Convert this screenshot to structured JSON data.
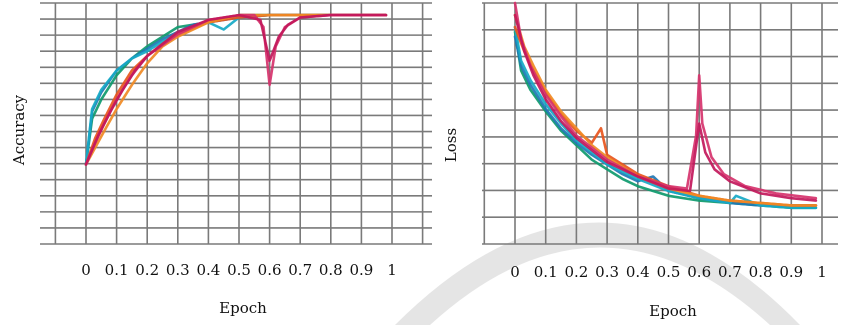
{
  "colors": {
    "grid": "#7a7a7a",
    "background": "#ffffff",
    "watermark": "#bdbdbd",
    "series_palette": [
      "#0e9a6e",
      "#1f77b4",
      "#17a9c6",
      "#e8551d",
      "#f08a24",
      "#d6336c",
      "#c2185b",
      "#2b9bd6"
    ]
  },
  "chart_data": [
    {
      "type": "line",
      "title": "",
      "xlabel": "Epoch",
      "ylabel": "Accuracy",
      "x_ticks": [
        "0",
        "0.1",
        "0.2",
        "0.3",
        "0.4",
        "0.5",
        "0.6",
        "0.7",
        "0.8",
        "0.9",
        "1"
      ],
      "xlim": [
        -0.1,
        1.05
      ],
      "ylim": [
        0,
        1
      ],
      "grid": true,
      "legend": "none",
      "series": [
        {
          "color": "#0e9a6e",
          "x": [
            0,
            0.02,
            0.05,
            0.1,
            0.15,
            0.2,
            0.25,
            0.3,
            0.4,
            0.5,
            0.6,
            0.7,
            0.8,
            0.9,
            0.98
          ],
          "y": [
            0.33,
            0.52,
            0.6,
            0.7,
            0.77,
            0.82,
            0.86,
            0.9,
            0.92,
            0.95,
            0.95,
            0.95,
            0.95,
            0.95,
            0.95
          ]
        },
        {
          "color": "#1f77b4",
          "x": [
            0,
            0.02,
            0.05,
            0.1,
            0.15,
            0.2,
            0.25,
            0.3,
            0.35,
            0.4,
            0.5,
            0.6,
            0.7,
            0.8,
            0.9,
            0.98
          ],
          "y": [
            0.33,
            0.55,
            0.63,
            0.72,
            0.77,
            0.81,
            0.85,
            0.88,
            0.91,
            0.92,
            0.94,
            0.95,
            0.95,
            0.95,
            0.95,
            0.95
          ]
        },
        {
          "color": "#17a9c6",
          "x": [
            0,
            0.02,
            0.05,
            0.1,
            0.15,
            0.2,
            0.25,
            0.3,
            0.35,
            0.4,
            0.45,
            0.5,
            0.6,
            0.7,
            0.8,
            0.9,
            0.98
          ],
          "y": [
            0.33,
            0.56,
            0.64,
            0.72,
            0.77,
            0.8,
            0.84,
            0.87,
            0.9,
            0.92,
            0.89,
            0.94,
            0.95,
            0.95,
            0.95,
            0.95,
            0.95
          ]
        },
        {
          "color": "#e8551d",
          "x": [
            0,
            0.03,
            0.06,
            0.1,
            0.15,
            0.2,
            0.25,
            0.3,
            0.4,
            0.5,
            0.6,
            0.7,
            0.8,
            0.9,
            0.98
          ],
          "y": [
            0.33,
            0.44,
            0.52,
            0.62,
            0.72,
            0.78,
            0.83,
            0.87,
            0.92,
            0.94,
            0.95,
            0.95,
            0.95,
            0.95,
            0.95
          ]
        },
        {
          "color": "#f08a24",
          "x": [
            0,
            0.03,
            0.06,
            0.1,
            0.15,
            0.2,
            0.25,
            0.3,
            0.4,
            0.5,
            0.6,
            0.7,
            0.8,
            0.9,
            0.98
          ],
          "y": [
            0.33,
            0.4,
            0.47,
            0.56,
            0.66,
            0.75,
            0.82,
            0.86,
            0.92,
            0.95,
            0.95,
            0.95,
            0.95,
            0.95,
            0.95
          ]
        },
        {
          "color": "#d6336c",
          "x": [
            0,
            0.03,
            0.06,
            0.1,
            0.15,
            0.2,
            0.3,
            0.4,
            0.5,
            0.55,
            0.58,
            0.6,
            0.62,
            0.65,
            0.7,
            0.8,
            0.9,
            0.98
          ],
          "y": [
            0.33,
            0.42,
            0.5,
            0.6,
            0.7,
            0.78,
            0.87,
            0.93,
            0.95,
            0.95,
            0.9,
            0.66,
            0.82,
            0.9,
            0.94,
            0.95,
            0.95,
            0.95
          ]
        },
        {
          "color": "#c2185b",
          "x": [
            0,
            0.04,
            0.08,
            0.12,
            0.16,
            0.2,
            0.3,
            0.4,
            0.5,
            0.57,
            0.6,
            0.63,
            0.66,
            0.7,
            0.8,
            0.9,
            0.98
          ],
          "y": [
            0.33,
            0.45,
            0.55,
            0.64,
            0.72,
            0.78,
            0.88,
            0.93,
            0.95,
            0.93,
            0.76,
            0.86,
            0.91,
            0.94,
            0.95,
            0.95,
            0.95
          ]
        }
      ]
    },
    {
      "type": "line",
      "title": "",
      "xlabel": "Epoch",
      "ylabel": "Loss",
      "x_ticks": [
        "0",
        "0.1",
        "0.2",
        "0.3",
        "0.4",
        "0.5",
        "0.6",
        "0.7",
        "0.8",
        "0.9",
        "1"
      ],
      "xlim": [
        -0.1,
        1.05
      ],
      "ylim": [
        0,
        1
      ],
      "grid": true,
      "legend": "none",
      "series": [
        {
          "color": "#0e9a6e",
          "x": [
            0,
            0.02,
            0.05,
            0.1,
            0.15,
            0.2,
            0.25,
            0.3,
            0.35,
            0.4,
            0.5,
            0.6,
            0.7,
            0.8,
            0.9,
            0.98
          ],
          "y": [
            0.88,
            0.72,
            0.64,
            0.55,
            0.47,
            0.41,
            0.35,
            0.31,
            0.27,
            0.24,
            0.2,
            0.18,
            0.17,
            0.16,
            0.15,
            0.15
          ]
        },
        {
          "color": "#1f77b4",
          "x": [
            0,
            0.02,
            0.05,
            0.1,
            0.15,
            0.2,
            0.25,
            0.3,
            0.35,
            0.4,
            0.45,
            0.5,
            0.6,
            0.7,
            0.8,
            0.9,
            0.98
          ],
          "y": [
            0.86,
            0.74,
            0.66,
            0.56,
            0.48,
            0.42,
            0.37,
            0.33,
            0.29,
            0.26,
            0.28,
            0.22,
            0.19,
            0.17,
            0.16,
            0.16,
            0.16
          ]
        },
        {
          "color": "#17a9c6",
          "x": [
            0,
            0.02,
            0.05,
            0.1,
            0.15,
            0.2,
            0.25,
            0.3,
            0.4,
            0.5,
            0.6,
            0.7,
            0.72,
            0.8,
            0.9,
            0.98
          ],
          "y": [
            0.9,
            0.76,
            0.68,
            0.58,
            0.5,
            0.43,
            0.38,
            0.33,
            0.27,
            0.22,
            0.19,
            0.17,
            0.2,
            0.16,
            0.15,
            0.15
          ]
        },
        {
          "color": "#e8551d",
          "x": [
            0,
            0.03,
            0.06,
            0.1,
            0.15,
            0.2,
            0.25,
            0.28,
            0.3,
            0.35,
            0.4,
            0.5,
            0.6,
            0.7,
            0.8,
            0.9,
            0.98
          ],
          "y": [
            0.9,
            0.8,
            0.72,
            0.63,
            0.54,
            0.47,
            0.42,
            0.48,
            0.37,
            0.33,
            0.29,
            0.24,
            0.2,
            0.18,
            0.17,
            0.16,
            0.16
          ]
        },
        {
          "color": "#f08a24",
          "x": [
            0,
            0.03,
            0.06,
            0.1,
            0.15,
            0.2,
            0.25,
            0.3,
            0.35,
            0.4,
            0.5,
            0.6,
            0.7,
            0.8,
            0.9,
            0.98
          ],
          "y": [
            0.95,
            0.82,
            0.74,
            0.64,
            0.55,
            0.48,
            0.41,
            0.36,
            0.32,
            0.28,
            0.23,
            0.2,
            0.18,
            0.17,
            0.16,
            0.16
          ]
        },
        {
          "color": "#d6336c",
          "x": [
            0,
            0.02,
            0.05,
            0.1,
            0.15,
            0.2,
            0.3,
            0.4,
            0.5,
            0.56,
            0.59,
            0.6,
            0.61,
            0.64,
            0.68,
            0.75,
            0.85,
            0.98
          ],
          "y": [
            1.0,
            0.85,
            0.74,
            0.62,
            0.53,
            0.45,
            0.35,
            0.28,
            0.24,
            0.23,
            0.45,
            0.7,
            0.5,
            0.36,
            0.29,
            0.24,
            0.21,
            0.19
          ]
        },
        {
          "color": "#c2185b",
          "x": [
            0,
            0.03,
            0.06,
            0.1,
            0.15,
            0.2,
            0.3,
            0.4,
            0.5,
            0.57,
            0.6,
            0.62,
            0.65,
            0.7,
            0.8,
            0.9,
            0.98
          ],
          "y": [
            0.95,
            0.8,
            0.7,
            0.6,
            0.51,
            0.44,
            0.34,
            0.28,
            0.23,
            0.22,
            0.5,
            0.38,
            0.31,
            0.26,
            0.21,
            0.19,
            0.18
          ]
        }
      ]
    }
  ]
}
